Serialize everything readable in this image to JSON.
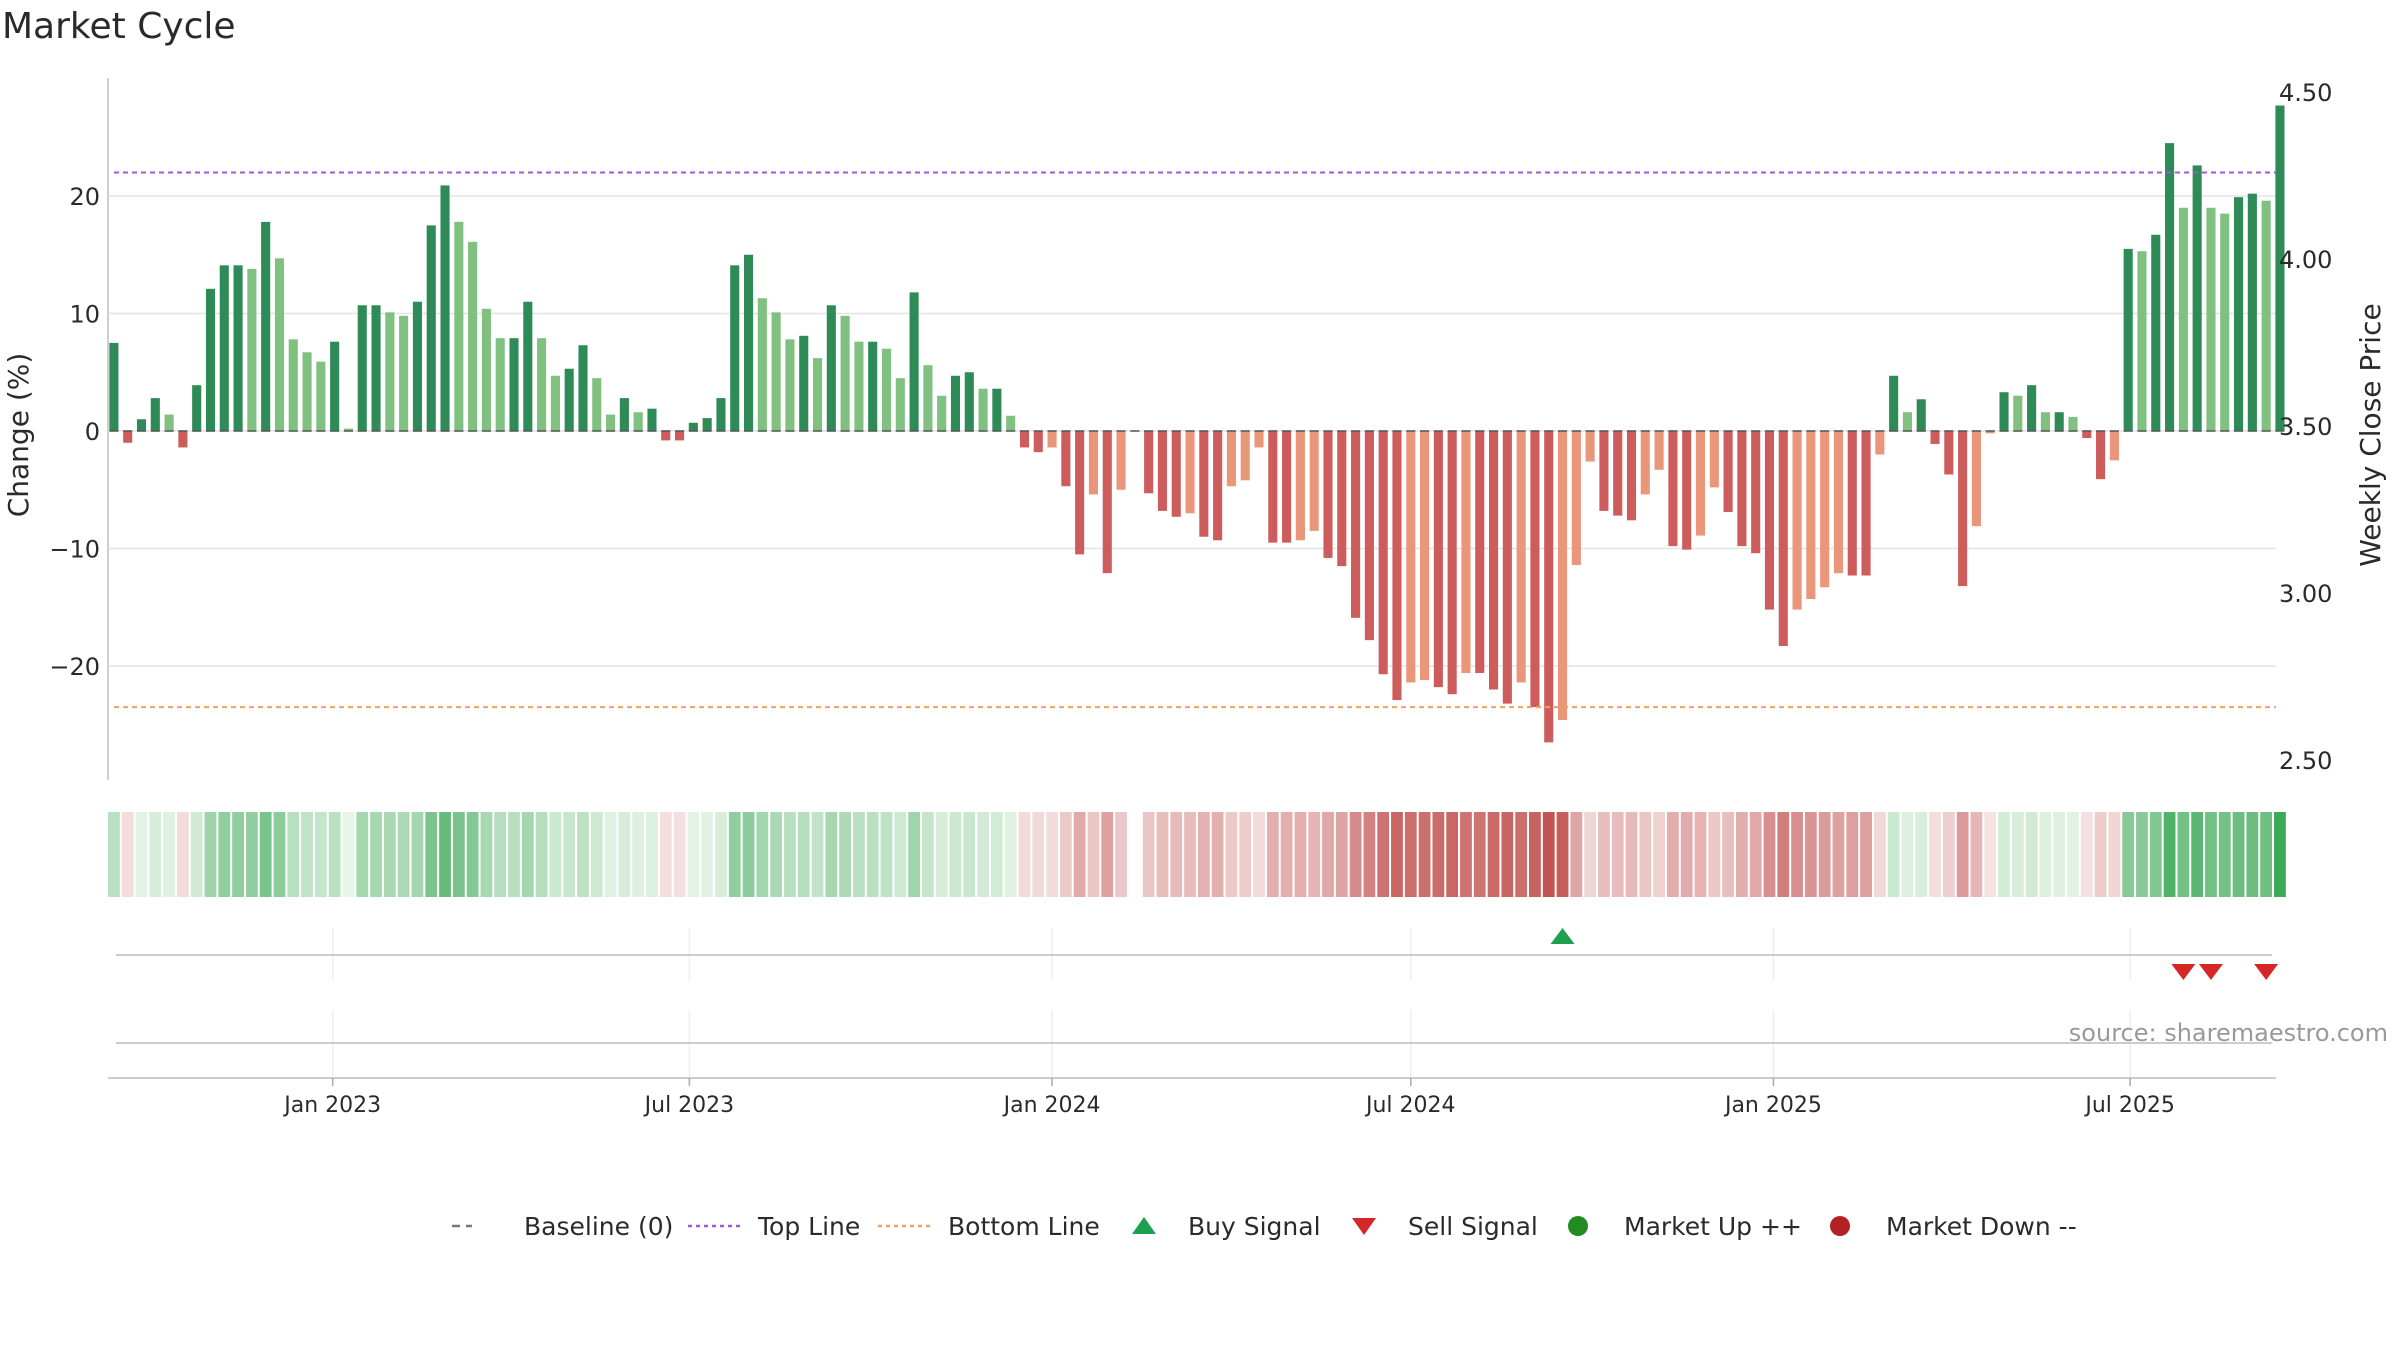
{
  "chart_data": {
    "type": "bar",
    "title": "Market Cycle",
    "ylabel": "Change (%)",
    "y2label": "Weekly Close Price",
    "ylim": [
      -30,
      30
    ],
    "y_ticks": [
      20,
      10,
      0,
      -10,
      -20
    ],
    "y_tick_labels": [
      "20",
      "10",
      "0",
      "−10",
      "−20"
    ],
    "y2lim": [
      2.5,
      4.5
    ],
    "y2_ticks": [
      4.5,
      4.0,
      3.5,
      3.0,
      2.5
    ],
    "y2_tick_labels": [
      "4.50",
      "4.00",
      "3.50",
      "3.00",
      "2.50"
    ],
    "x_tick_labels": [
      "Jan 2023",
      "Jul 2023",
      "Jan 2024",
      "Jul 2024",
      "Jan 2025",
      "Jul 2025"
    ],
    "x_ticks": [
      "2023-01-01",
      "2023-07-01",
      "2024-01-01",
      "2024-07-01",
      "2025-01-01",
      "2025-07-01"
    ],
    "x_range": [
      "2022-09-09",
      "2025-09-13"
    ],
    "first_week": "2022-09-12",
    "top_line": 22,
    "bottom_line": -23.5,
    "values": [
      7.5,
      -1,
      1,
      2.8,
      1.4,
      -1.4,
      3.9,
      12.1,
      14.1,
      14.1,
      13.8,
      17.8,
      14.7,
      7.8,
      6.7,
      5.9,
      7.6,
      0.2,
      10.7,
      10.7,
      10.1,
      9.8,
      11,
      17.5,
      20.9,
      17.8,
      16.1,
      10.4,
      7.9,
      7.9,
      11,
      7.9,
      4.7,
      5.3,
      7.3,
      4.5,
      1.4,
      2.8,
      1.6,
      1.9,
      -0.8,
      -0.8,
      0.7,
      1.1,
      2.8,
      14.1,
      15,
      11.3,
      10.1,
      7.8,
      8.1,
      6.2,
      10.7,
      9.8,
      7.6,
      7.6,
      7.0,
      4.5,
      11.8,
      5.6,
      3.0,
      4.7,
      5.0,
      3.6,
      3.6,
      1.3,
      -1.4,
      -1.8,
      -1.4,
      -4.7,
      -10.5,
      -5.4,
      -12.1,
      -5.0,
      0,
      -5.3,
      -6.8,
      -7.3,
      -7.0,
      -9.0,
      -9.3,
      -4.7,
      -4.2,
      -1.4,
      -9.5,
      -9.5,
      -9.3,
      -8.5,
      -10.8,
      -11.5,
      -15.9,
      -17.8,
      -20.7,
      -22.9,
      -21.4,
      -21.2,
      -21.8,
      -22.4,
      -20.6,
      -20.6,
      -22.0,
      -23.2,
      -21.4,
      -23.5,
      -26.5,
      -24.6,
      -11.4,
      -2.6,
      -6.8,
      -7.2,
      -7.6,
      -5.4,
      -3.3,
      -9.8,
      -10.1,
      -8.9,
      -4.8,
      -6.9,
      -9.8,
      -10.4,
      -15.2,
      -18.3,
      -15.2,
      -14.3,
      -13.3,
      -12.1,
      -12.3,
      -12.3,
      -2.0,
      4.7,
      1.6,
      2.7,
      -1.1,
      -3.7,
      -13.2,
      -8.1,
      -0.2,
      3.3,
      3.0,
      3.9,
      1.6,
      1.6,
      1.2,
      -0.6,
      -4.1,
      -2.5,
      15.5,
      15.3,
      16.7,
      24.5,
      19.0,
      22.6,
      19.0,
      18.5,
      19.9,
      20.2,
      19.6,
      27.7
    ],
    "buy_signals": [
      "2024-09-16"
    ],
    "sell_signals": [
      "2025-07-28",
      "2025-08-11",
      "2025-09-08"
    ],
    "legend": [
      {
        "label": "Baseline (0)",
        "symbol": "dash",
        "color": "#777777"
      },
      {
        "label": "Top Line",
        "symbol": "dotted",
        "color": "#9b59e0"
      },
      {
        "label": "Bottom Line",
        "symbol": "dotted",
        "color": "#f0a060"
      },
      {
        "label": "Buy Signal",
        "symbol": "triangle-up",
        "color": "#1ea050"
      },
      {
        "label": "Sell Signal",
        "symbol": "triangle-down",
        "color": "#d62728"
      },
      {
        "label": "Market Up ++",
        "symbol": "circle",
        "color": "#228b22"
      },
      {
        "label": "Market Down --",
        "symbol": "circle",
        "color": "#b22222"
      }
    ],
    "legend_position": "bottom",
    "grid": true
  },
  "source_text": "source: sharemaestro.com"
}
